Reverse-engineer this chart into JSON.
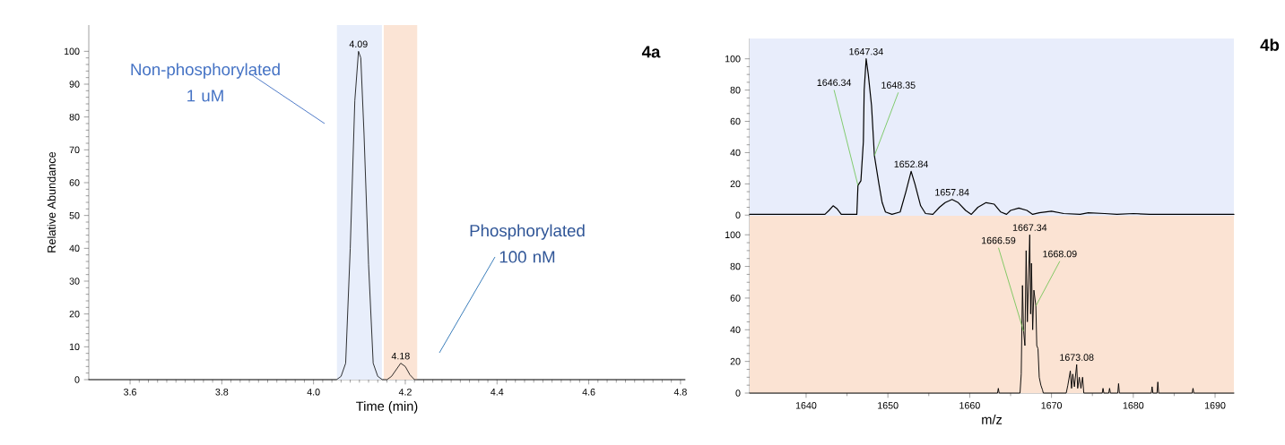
{
  "chart_data": [
    {
      "type": "line",
      "xlabel": "Time (min)",
      "ylabel": "Relative Abundance",
      "annotations": [
        "4a",
        "Non-phosphorylated  1 uM",
        "Phosphorylated 100 nM",
        {
          "text": "4.09",
          "x": 4.098,
          "y": 100
        },
        {
          "text": "4.18",
          "x": 4.19,
          "y": 5
        }
      ],
      "x": [
        3.51,
        4.05,
        4.06,
        4.07,
        4.08,
        4.09,
        4.098,
        4.103,
        4.11,
        4.12,
        4.13,
        4.14,
        4.15,
        4.16,
        4.17,
        4.18,
        4.19,
        4.2,
        4.21,
        4.22,
        4.81
      ],
      "values": [
        0,
        0,
        1,
        5,
        40,
        85,
        100,
        98,
        75,
        35,
        5,
        1,
        0,
        0,
        1,
        3,
        5,
        4,
        1.5,
        0,
        0
      ],
      "color": "#000000",
      "xlim": [
        3.51,
        4.81
      ],
      "ylim": [
        0,
        108
      ],
      "xticks": [
        3.6,
        3.8,
        {
          "value": 4.0,
          "label": "4.0"
        },
        4.2,
        4.4,
        4.6,
        4.8
      ],
      "yticks": [
        0,
        10,
        20,
        30,
        40,
        50,
        60,
        70,
        80,
        90,
        100
      ],
      "bands": [
        {
          "axis": "x",
          "from": 4.051,
          "to": 4.149,
          "color": "#e8eefb"
        },
        {
          "axis": "x",
          "from": 4.153,
          "to": 4.226,
          "color": "#fbe4d5"
        }
      ]
    },
    {
      "type": "line",
      "tick_labels": "y",
      "annotations": [
        "4b",
        {
          "text": "1647.34",
          "x": 1647.34,
          "y": 100
        },
        {
          "text": "1646.34",
          "x": 1646.34,
          "y": 19
        },
        {
          "text": "1648.35",
          "x": 1648.35,
          "y": 38
        },
        {
          "text": "1652.84",
          "x": 1652.84,
          "y": 28
        },
        {
          "text": "1657.84",
          "x": 1657.84,
          "y": 10
        }
      ],
      "x": [
        1633.1,
        1642.3,
        1642.8,
        1643.3,
        1643.8,
        1644.3,
        1646.2,
        1646.34,
        1646.7,
        1647.0,
        1647.1,
        1647.34,
        1647.6,
        1648.0,
        1648.35,
        1648.9,
        1649.3,
        1649.7,
        1650.5,
        1651.5,
        1652.2,
        1652.84,
        1653.3,
        1654.0,
        1654.6,
        1655.5,
        1656.3,
        1657.0,
        1657.84,
        1658.6,
        1659.5,
        1660.2,
        1661.0,
        1662.0,
        1663.0,
        1663.8,
        1664.5,
        1665.0,
        1666.0,
        1667.0,
        1667.7,
        1668.5,
        1670.0,
        1671.5,
        1673.5,
        1674.5,
        1676.5,
        1678.0,
        1680.0,
        1682.0,
        1692.3
      ],
      "values": [
        0.5,
        0.5,
        3,
        6,
        4,
        0.5,
        0.5,
        19,
        22,
        47,
        80,
        100,
        90,
        70,
        38,
        20,
        8,
        2,
        0.5,
        2,
        15,
        28,
        20,
        6,
        1,
        0.5,
        5,
        8,
        10,
        8,
        3,
        0.5,
        5,
        8,
        7,
        2,
        0.5,
        3,
        4.5,
        3,
        0.5,
        1.5,
        2.5,
        1,
        0.5,
        1.5,
        1,
        0.5,
        1,
        0.5,
        0.5
      ],
      "color": "#000000",
      "xlim": [
        1633.1,
        1692.3
      ],
      "ylim": [
        -1,
        113
      ],
      "yticks": [
        0,
        20,
        40,
        60,
        80,
        100
      ],
      "bands": [
        {
          "axis": "x",
          "from": 1633.1,
          "to": 1692.3,
          "color": "#e8edfb"
        }
      ]
    },
    {
      "type": "line",
      "xlabel": "m/z",
      "annotations": [
        {
          "text": "1667.34",
          "x": 1667.34,
          "y": 100
        },
        {
          "text": "1666.59",
          "x": 1666.59,
          "y": 39
        },
        {
          "text": "1668.09",
          "x": 1668.09,
          "y": 55
        },
        {
          "text": "1673.08",
          "x": 1673.08,
          "y": 18
        }
      ],
      "x": [
        1633.1,
        1663.4,
        1663.5,
        1663.6,
        1666.15,
        1666.3,
        1666.45,
        1666.59,
        1666.75,
        1666.9,
        1667.05,
        1667.34,
        1667.45,
        1667.55,
        1667.7,
        1667.85,
        1668.09,
        1668.2,
        1668.35,
        1668.5,
        1668.7,
        1668.9,
        1669.0,
        1671.8,
        1672.0,
        1672.3,
        1672.45,
        1672.6,
        1672.8,
        1673.08,
        1673.2,
        1673.4,
        1673.6,
        1673.8,
        1673.95,
        1676.2,
        1676.3,
        1676.4,
        1677.0,
        1677.1,
        1677.2,
        1678.1,
        1678.2,
        1678.3,
        1682.2,
        1682.3,
        1682.4,
        1682.9,
        1683.0,
        1683.1,
        1687.2,
        1687.3,
        1687.4,
        1692.3
      ],
      "values": [
        0,
        0,
        3,
        0,
        0,
        12,
        68,
        39,
        30,
        90,
        45,
        100,
        50,
        82,
        40,
        65,
        55,
        30,
        28,
        10,
        5,
        2,
        0,
        0,
        5,
        14,
        3,
        12,
        4,
        18,
        3,
        10,
        3,
        10,
        0,
        0,
        3,
        0,
        0,
        3,
        0,
        0,
        6,
        0,
        0,
        4,
        0,
        0,
        7,
        0,
        0,
        3,
        0,
        0
      ],
      "color": "#000000",
      "xlim": [
        1633.1,
        1692.3
      ],
      "ylim": [
        0,
        112
      ],
      "xticks": [
        1640,
        1650,
        1660,
        1670,
        1680,
        1690
      ],
      "yticks": [
        0,
        20,
        40,
        60,
        80,
        100
      ],
      "bands": [
        {
          "axis": "x",
          "from": 1633.1,
          "to": 1692.3,
          "color": "#fbe3d3"
        }
      ]
    }
  ]
}
